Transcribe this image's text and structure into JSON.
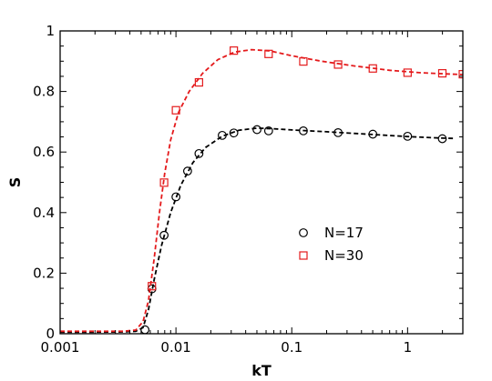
{
  "chart_data": {
    "type": "scatter",
    "xlabel": "kT",
    "ylabel": "S",
    "xscale": "log",
    "xlim": [
      0.001,
      3
    ],
    "ylim": [
      0,
      1
    ],
    "x_ticks": [
      {
        "value": 0.001,
        "label": "0.001"
      },
      {
        "value": 0.01,
        "label": "0.01"
      },
      {
        "value": 0.1,
        "label": "0.1"
      },
      {
        "value": 1,
        "label": "1"
      }
    ],
    "y_ticks": [
      {
        "value": 0,
        "label": "0"
      },
      {
        "value": 0.2,
        "label": "0.2"
      },
      {
        "value": 0.4,
        "label": "0.4"
      },
      {
        "value": 0.6,
        "label": "0.6"
      },
      {
        "value": 0.8,
        "label": "0.8"
      },
      {
        "value": 1,
        "label": "1"
      }
    ],
    "grid": false,
    "legend_position": "center-right",
    "series": [
      {
        "name": "N=17",
        "marker": "circle",
        "color": "#000000",
        "points": [
          {
            "x": 0.0054,
            "y": 0.013
          },
          {
            "x": 0.0062,
            "y": 0.148
          },
          {
            "x": 0.0079,
            "y": 0.325
          },
          {
            "x": 0.01,
            "y": 0.452
          },
          {
            "x": 0.0126,
            "y": 0.537
          },
          {
            "x": 0.0158,
            "y": 0.595
          },
          {
            "x": 0.0251,
            "y": 0.655
          },
          {
            "x": 0.0316,
            "y": 0.663
          },
          {
            "x": 0.0501,
            "y": 0.674
          },
          {
            "x": 0.0631,
            "y": 0.67
          },
          {
            "x": 0.1259,
            "y": 0.67
          },
          {
            "x": 0.2512,
            "y": 0.664
          },
          {
            "x": 0.5012,
            "y": 0.659
          },
          {
            "x": 1.0,
            "y": 0.652
          },
          {
            "x": 1.9953,
            "y": 0.644
          }
        ],
        "fit": [
          {
            "x": 0.001,
            "y": 0.005
          },
          {
            "x": 0.002,
            "y": 0.005
          },
          {
            "x": 0.0035,
            "y": 0.006
          },
          {
            "x": 0.0045,
            "y": 0.008
          },
          {
            "x": 0.0052,
            "y": 0.02
          },
          {
            "x": 0.0058,
            "y": 0.08
          },
          {
            "x": 0.0065,
            "y": 0.18
          },
          {
            "x": 0.0075,
            "y": 0.29
          },
          {
            "x": 0.009,
            "y": 0.4
          },
          {
            "x": 0.011,
            "y": 0.49
          },
          {
            "x": 0.014,
            "y": 0.565
          },
          {
            "x": 0.018,
            "y": 0.615
          },
          {
            "x": 0.025,
            "y": 0.652
          },
          {
            "x": 0.035,
            "y": 0.672
          },
          {
            "x": 0.05,
            "y": 0.679
          },
          {
            "x": 0.07,
            "y": 0.677
          },
          {
            "x": 0.1,
            "y": 0.673
          },
          {
            "x": 0.2,
            "y": 0.667
          },
          {
            "x": 0.5,
            "y": 0.658
          },
          {
            "x": 1.0,
            "y": 0.651
          },
          {
            "x": 2.0,
            "y": 0.646
          },
          {
            "x": 2.5,
            "y": 0.645
          }
        ]
      },
      {
        "name": "N=30",
        "marker": "square",
        "color": "#e41a1c",
        "points": [
          {
            "x": 0.0062,
            "y": 0.157
          },
          {
            "x": 0.0079,
            "y": 0.499
          },
          {
            "x": 0.01,
            "y": 0.738
          },
          {
            "x": 0.0158,
            "y": 0.83
          },
          {
            "x": 0.0316,
            "y": 0.935
          },
          {
            "x": 0.0631,
            "y": 0.924
          },
          {
            "x": 0.1259,
            "y": 0.899
          },
          {
            "x": 0.2512,
            "y": 0.889
          },
          {
            "x": 0.5012,
            "y": 0.876
          },
          {
            "x": 1.0,
            "y": 0.862
          },
          {
            "x": 1.9953,
            "y": 0.86
          },
          {
            "x": 3.0,
            "y": 0.857
          }
        ],
        "fit": [
          {
            "x": 0.001,
            "y": 0.008
          },
          {
            "x": 0.002,
            "y": 0.008
          },
          {
            "x": 0.0035,
            "y": 0.008
          },
          {
            "x": 0.0045,
            "y": 0.012
          },
          {
            "x": 0.0052,
            "y": 0.04
          },
          {
            "x": 0.0058,
            "y": 0.11
          },
          {
            "x": 0.0065,
            "y": 0.25
          },
          {
            "x": 0.0072,
            "y": 0.4
          },
          {
            "x": 0.008,
            "y": 0.53
          },
          {
            "x": 0.009,
            "y": 0.64
          },
          {
            "x": 0.0105,
            "y": 0.73
          },
          {
            "x": 0.013,
            "y": 0.8
          },
          {
            "x": 0.017,
            "y": 0.86
          },
          {
            "x": 0.023,
            "y": 0.905
          },
          {
            "x": 0.032,
            "y": 0.93
          },
          {
            "x": 0.045,
            "y": 0.938
          },
          {
            "x": 0.065,
            "y": 0.934
          },
          {
            "x": 0.1,
            "y": 0.918
          },
          {
            "x": 0.18,
            "y": 0.9
          },
          {
            "x": 0.35,
            "y": 0.884
          },
          {
            "x": 0.7,
            "y": 0.87
          },
          {
            "x": 1.3,
            "y": 0.862
          },
          {
            "x": 2.2,
            "y": 0.858
          },
          {
            "x": 3.0,
            "y": 0.856
          }
        ]
      }
    ]
  }
}
